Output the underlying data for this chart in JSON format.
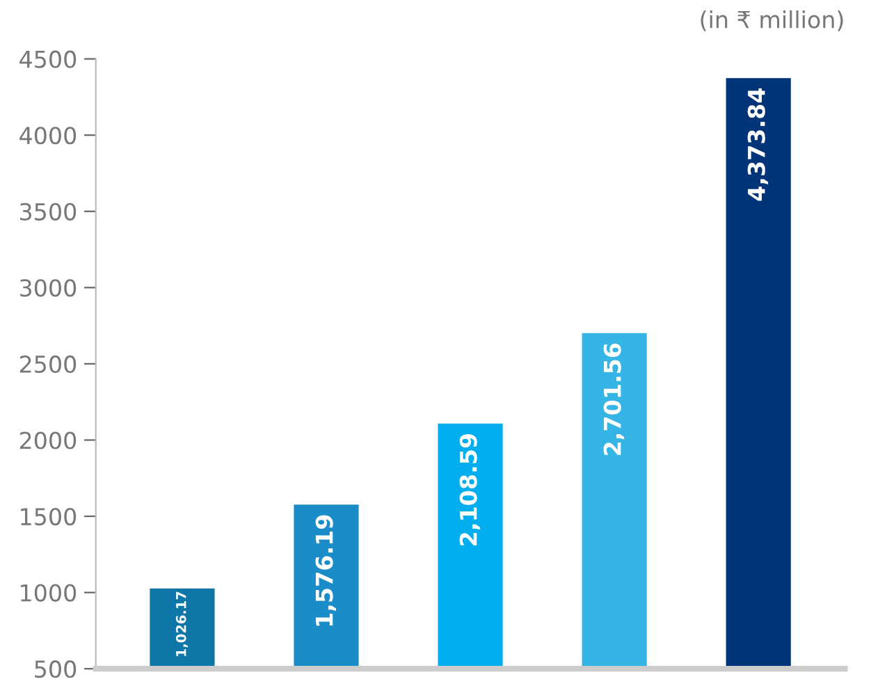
{
  "chart_data": {
    "type": "bar",
    "categories": [
      null,
      null,
      null,
      null,
      null
    ],
    "values": [
      1026.17,
      1576.19,
      2108.59,
      2701.56,
      4373.84
    ],
    "value_labels": [
      "1,026.17",
      "1,576.19",
      "2,108.59",
      "2,701.56",
      "4,373.84"
    ],
    "colors": [
      "#0f77a8",
      "#1a8cc8",
      "#00aeef",
      "#35b4e6",
      "#003478"
    ],
    "ylim": [
      500,
      4500
    ],
    "yticks": [
      500,
      1000,
      1500,
      2000,
      2500,
      3000,
      3500,
      4000,
      4500
    ],
    "annotations": [
      "(in ₹ million)"
    ],
    "grid": false
  }
}
